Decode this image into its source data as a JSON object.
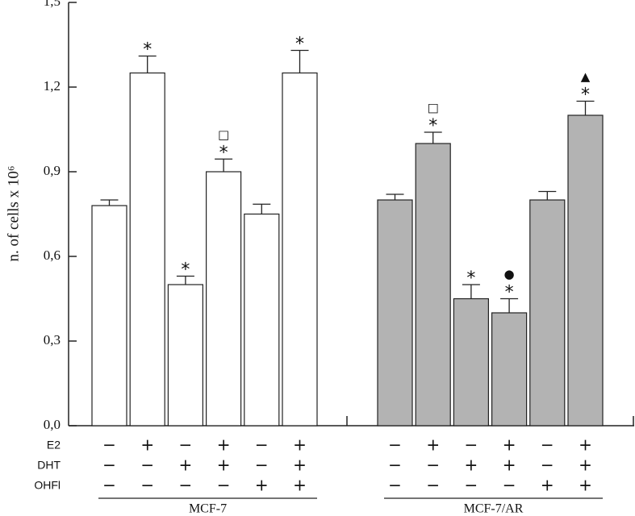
{
  "chart_data": {
    "type": "bar",
    "ylabel": "n. of cells x 10⁶",
    "ylim": [
      0,
      1.5
    ],
    "yticks": [
      {
        "value": 0,
        "label": "0,0"
      },
      {
        "value": 0.3,
        "label": "0,3"
      },
      {
        "value": 0.6,
        "label": "0,6"
      },
      {
        "value": 0.9,
        "label": "0,9"
      },
      {
        "value": 1.2,
        "label": "1,2"
      },
      {
        "value": 1.5,
        "label": "1,5"
      }
    ],
    "treatment_labels": [
      "E2",
      "DHT",
      "OHFl"
    ],
    "series": [
      {
        "name": "MCF-7",
        "color": "#ffffff",
        "values": [
          0.78,
          1.25,
          0.5,
          0.9,
          0.75,
          1.25
        ],
        "errors": [
          0.02,
          0.06,
          0.03,
          0.045,
          0.035,
          0.08
        ],
        "annotations": [
          [],
          [
            "*"
          ],
          [
            "*"
          ],
          [
            "□",
            "*"
          ],
          [],
          [
            "*"
          ]
        ],
        "treatment_signs": [
          [
            "−",
            "+",
            "−",
            "+",
            "−",
            "+"
          ],
          [
            "−",
            "−",
            "+",
            "+",
            "−",
            "+"
          ],
          [
            "−",
            "−",
            "−",
            "−",
            "+",
            "+"
          ]
        ]
      },
      {
        "name": "MCF-7/AR",
        "color": "#b3b3b3",
        "values": [
          0.8,
          1.0,
          0.45,
          0.4,
          0.8,
          1.1
        ],
        "errors": [
          0.02,
          0.04,
          0.05,
          0.05,
          0.03,
          0.05
        ],
        "annotations": [
          [],
          [
            "□",
            "*"
          ],
          [
            "*"
          ],
          [
            "●",
            "*"
          ],
          [],
          [
            "▲",
            "*"
          ]
        ],
        "treatment_signs": [
          [
            "−",
            "+",
            "−",
            "+",
            "−",
            "+"
          ],
          [
            "−",
            "−",
            "+",
            "+",
            "−",
            "+"
          ],
          [
            "−",
            "−",
            "−",
            "−",
            "+",
            "+"
          ]
        ]
      }
    ]
  }
}
